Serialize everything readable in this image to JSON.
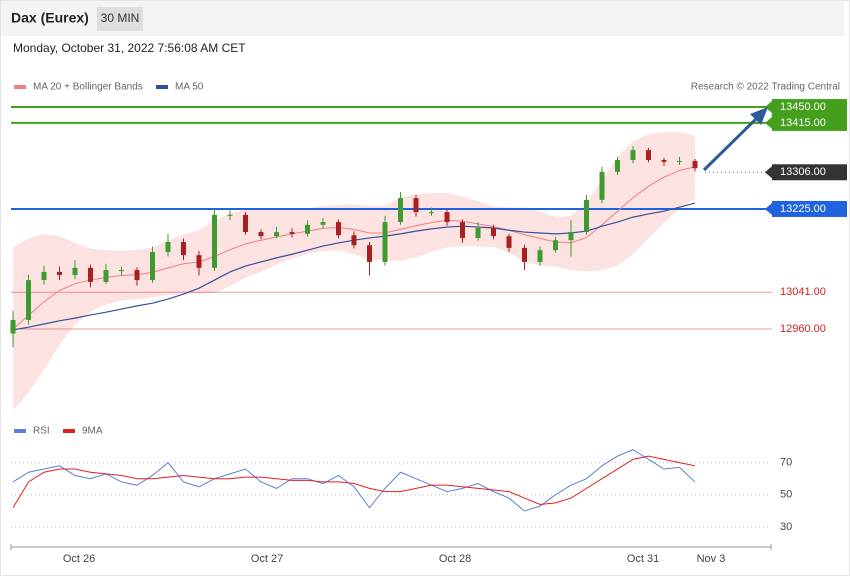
{
  "header": {
    "title": "Dax (Eurex)",
    "interval": "30 MIN",
    "timestamp": "Monday, October 31, 2022 7:56:08 AM CET",
    "credit": "Research © 2022 Trading Central"
  },
  "chart_data": [
    {
      "type": "candlestick",
      "xlim": [
        0,
        49
      ],
      "ylim": [
        12780,
        13470
      ],
      "up_color": "#3f9a2f",
      "down_color": "#a82020",
      "open": [
        12950,
        12980,
        13068,
        13086,
        13079,
        13095,
        13064,
        13090,
        13090,
        13068,
        13130,
        13152,
        13123,
        13095,
        13212,
        13212,
        13174,
        13165,
        13174,
        13170,
        13190,
        13196,
        13167,
        13145,
        13108,
        13196,
        13249,
        13218,
        13218,
        13196,
        13161,
        13183,
        13165,
        13139,
        13108,
        13134,
        13156,
        13174,
        13245,
        13307,
        13333,
        13355,
        13333,
        13329,
        13331
      ],
      "high": [
        13000,
        13080,
        13100,
        13098,
        13112,
        13102,
        13104,
        13098,
        13096,
        13142,
        13170,
        13160,
        13132,
        13225,
        13222,
        13218,
        13180,
        13186,
        13182,
        13200,
        13205,
        13202,
        13176,
        13152,
        13210,
        13262,
        13256,
        13228,
        13224,
        13202,
        13196,
        13190,
        13170,
        13146,
        13142,
        13164,
        13200,
        13256,
        13318,
        13340,
        13364,
        13360,
        13338,
        13340,
        13336
      ],
      "low": [
        12920,
        12970,
        13058,
        13068,
        13070,
        13052,
        13060,
        13078,
        13056,
        13062,
        13120,
        13112,
        13078,
        13088,
        13200,
        13168,
        13158,
        13160,
        13162,
        13164,
        13182,
        13160,
        13138,
        13078,
        13100,
        13190,
        13208,
        13210,
        13188,
        13150,
        13155,
        13158,
        13130,
        13090,
        13100,
        13128,
        13120,
        13168,
        13238,
        13300,
        13326,
        13328,
        13320,
        13322,
        13308
      ],
      "close": [
        12980,
        13068,
        13086,
        13079,
        13095,
        13064,
        13090,
        13090,
        13068,
        13130,
        13152,
        13123,
        13095,
        13212,
        13212,
        13174,
        13165,
        13174,
        13170,
        13190,
        13196,
        13167,
        13145,
        13108,
        13196,
        13249,
        13218,
        13218,
        13196,
        13161,
        13183,
        13165,
        13139,
        13108,
        13134,
        13156,
        13174,
        13245,
        13307,
        13333,
        13355,
        13333,
        13329,
        13331,
        13315
      ],
      "series": [
        {
          "name": "MA 20 + Bollinger Bands",
          "color": "#f08080",
          "band_color": "#fde2e2",
          "values": [
            12960,
            12990,
            13020,
            13045,
            13060,
            13068,
            13074,
            13078,
            13080,
            13085,
            13095,
            13104,
            13108,
            13120,
            13135,
            13148,
            13156,
            13163,
            13170,
            13176,
            13182,
            13184,
            13180,
            13172,
            13172,
            13180,
            13188,
            13195,
            13200,
            13198,
            13192,
            13186,
            13178,
            13168,
            13160,
            13152,
            13150,
            13162,
            13190,
            13220,
            13250,
            13275,
            13295,
            13310,
            13318
          ],
          "upper": [
            13140,
            13160,
            13170,
            13165,
            13150,
            13138,
            13134,
            13133,
            13135,
            13140,
            13155,
            13169,
            13178,
            13200,
            13215,
            13223,
            13226,
            13223,
            13225,
            13226,
            13232,
            13234,
            13235,
            13232,
            13232,
            13250,
            13258,
            13260,
            13260,
            13253,
            13242,
            13231,
            13228,
            13228,
            13220,
            13207,
            13210,
            13237,
            13290,
            13340,
            13375,
            13390,
            13395,
            13395,
            13388
          ],
          "lower": [
            12780,
            12820,
            12870,
            12925,
            12970,
            12998,
            13014,
            13023,
            13025,
            13030,
            13035,
            13039,
            13038,
            13040,
            13055,
            13073,
            13086,
            13103,
            13115,
            13126,
            13132,
            13134,
            13125,
            13112,
            13112,
            13110,
            13118,
            13130,
            13140,
            13143,
            13142,
            13141,
            13128,
            13108,
            13100,
            13097,
            13090,
            13087,
            13090,
            13100,
            13125,
            13160,
            13195,
            13225,
            13248
          ]
        },
        {
          "name": "MA 50",
          "color": "#34509a",
          "values": [
            12958,
            12964,
            12971,
            12978,
            12984,
            12991,
            12997,
            13004,
            13011,
            13017,
            13026,
            13037,
            13050,
            13068,
            13086,
            13099,
            13108,
            13117,
            13125,
            13134,
            13143,
            13150,
            13156,
            13161,
            13165,
            13170,
            13176,
            13181,
            13185,
            13187,
            13185,
            13183,
            13178,
            13174,
            13172,
            13170,
            13172,
            13176,
            13187,
            13196,
            13207,
            13214,
            13220,
            13229,
            13238
          ]
        }
      ],
      "yticks": [
        {
          "value": 13450,
          "label": "13450.00"
        },
        {
          "value": 13415,
          "label": "13415.00"
        },
        {
          "value": 13306,
          "label": "13306.00"
        },
        {
          "value": 13225,
          "label": "13225.00"
        },
        {
          "value": 13041,
          "label": "13041.00"
        },
        {
          "value": 12960,
          "label": "12960.00"
        }
      ],
      "ytick_colors": [
        "#44a01c",
        "#44a01c",
        "#333333",
        "#1f63e0",
        "#d42020",
        "#d42020"
      ],
      "ytick_boxes": [
        true,
        true,
        true,
        true,
        false,
        false
      ],
      "ytick_lines": [
        "solid",
        "solid",
        "dotted",
        "solid",
        "solid",
        "solid"
      ]
    },
    {
      "type": "line",
      "xlim": [
        0,
        49
      ],
      "ylim": [
        22,
        84
      ],
      "yticks": [
        70,
        50,
        30
      ],
      "xticks": [
        {
          "value": 4.26,
          "label": "Oct 26"
        },
        {
          "value": 16.39,
          "label": "Oct 27"
        },
        {
          "value": 28.52,
          "label": "Oct 28"
        },
        {
          "value": 40.65,
          "label": "Oct 31"
        },
        {
          "value": 45.03,
          "label": "Nov 3"
        }
      ],
      "series": [
        {
          "name": "RSI",
          "color": "#5b7fd6",
          "values": [
            58,
            64,
            66,
            68,
            62,
            60,
            63,
            58,
            56,
            62,
            70,
            58,
            55,
            60,
            63,
            66,
            58,
            54,
            60,
            60,
            57,
            62,
            55,
            42,
            54,
            64,
            60,
            56,
            52,
            54,
            57,
            52,
            48,
            40,
            43,
            50,
            56,
            60,
            68,
            74,
            78,
            72,
            66,
            67,
            58
          ]
        },
        {
          "name": "9MA",
          "color": "#e02020",
          "values": [
            42,
            58,
            64,
            66,
            66,
            64,
            63,
            62,
            60,
            60,
            61,
            62,
            61,
            60,
            60,
            61,
            61,
            60,
            59,
            59,
            58,
            58,
            57,
            54,
            52,
            52,
            54,
            56,
            56,
            55,
            54,
            53,
            52,
            48,
            44,
            45,
            48,
            54,
            60,
            66,
            72,
            74,
            72,
            70,
            68
          ]
        }
      ]
    }
  ]
}
